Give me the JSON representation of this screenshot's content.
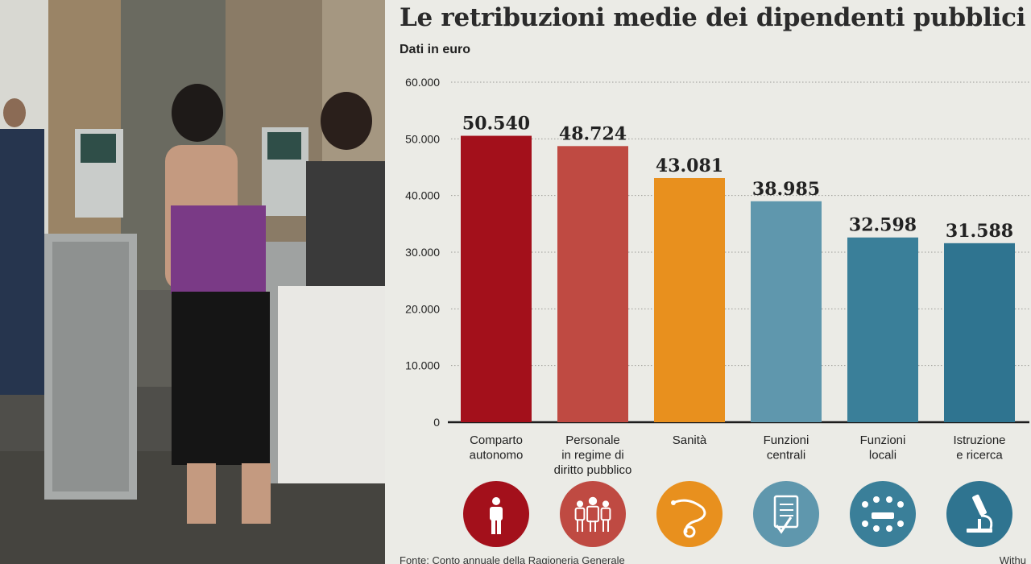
{
  "infographic": {
    "title": "Le retribuzioni medie dei dipendenti pubblici",
    "subtitle": "Dati in euro",
    "source": "Fonte: Conto annuale della Ragioneria Generale",
    "credit": "Withu"
  },
  "chart_data": {
    "type": "bar",
    "categories": [
      [
        "Comparto",
        "autonomo"
      ],
      [
        "Personale",
        "in regime di",
        "diritto pubblico"
      ],
      [
        "Sanità"
      ],
      [
        "Funzioni",
        "centrali"
      ],
      [
        "Funzioni",
        "locali"
      ],
      [
        "Istruzione",
        "e ricerca"
      ]
    ],
    "values": [
      50540,
      48724,
      43081,
      38985,
      32598,
      31588
    ],
    "value_labels": [
      "50.540",
      "48.724",
      "43.081",
      "38.985",
      "32.598",
      "31.588"
    ],
    "colors": [
      "#a3101b",
      "#bf4a42",
      "#e8901e",
      "#5f97ad",
      "#3a7f99",
      "#2f7490"
    ],
    "icons": [
      "person-icon",
      "group-icon",
      "stethoscope-icon",
      "document-check-icon",
      "meeting-icon",
      "microscope-icon"
    ],
    "ylim": [
      0,
      60000
    ],
    "yticks": [
      0,
      10000,
      20000,
      30000,
      40000,
      50000,
      60000
    ],
    "ytick_labels": [
      "0",
      "10.000",
      "20.000",
      "30.000",
      "40.000",
      "50.000",
      "60.000"
    ],
    "grid": true,
    "xlabel": "",
    "ylabel": ""
  }
}
